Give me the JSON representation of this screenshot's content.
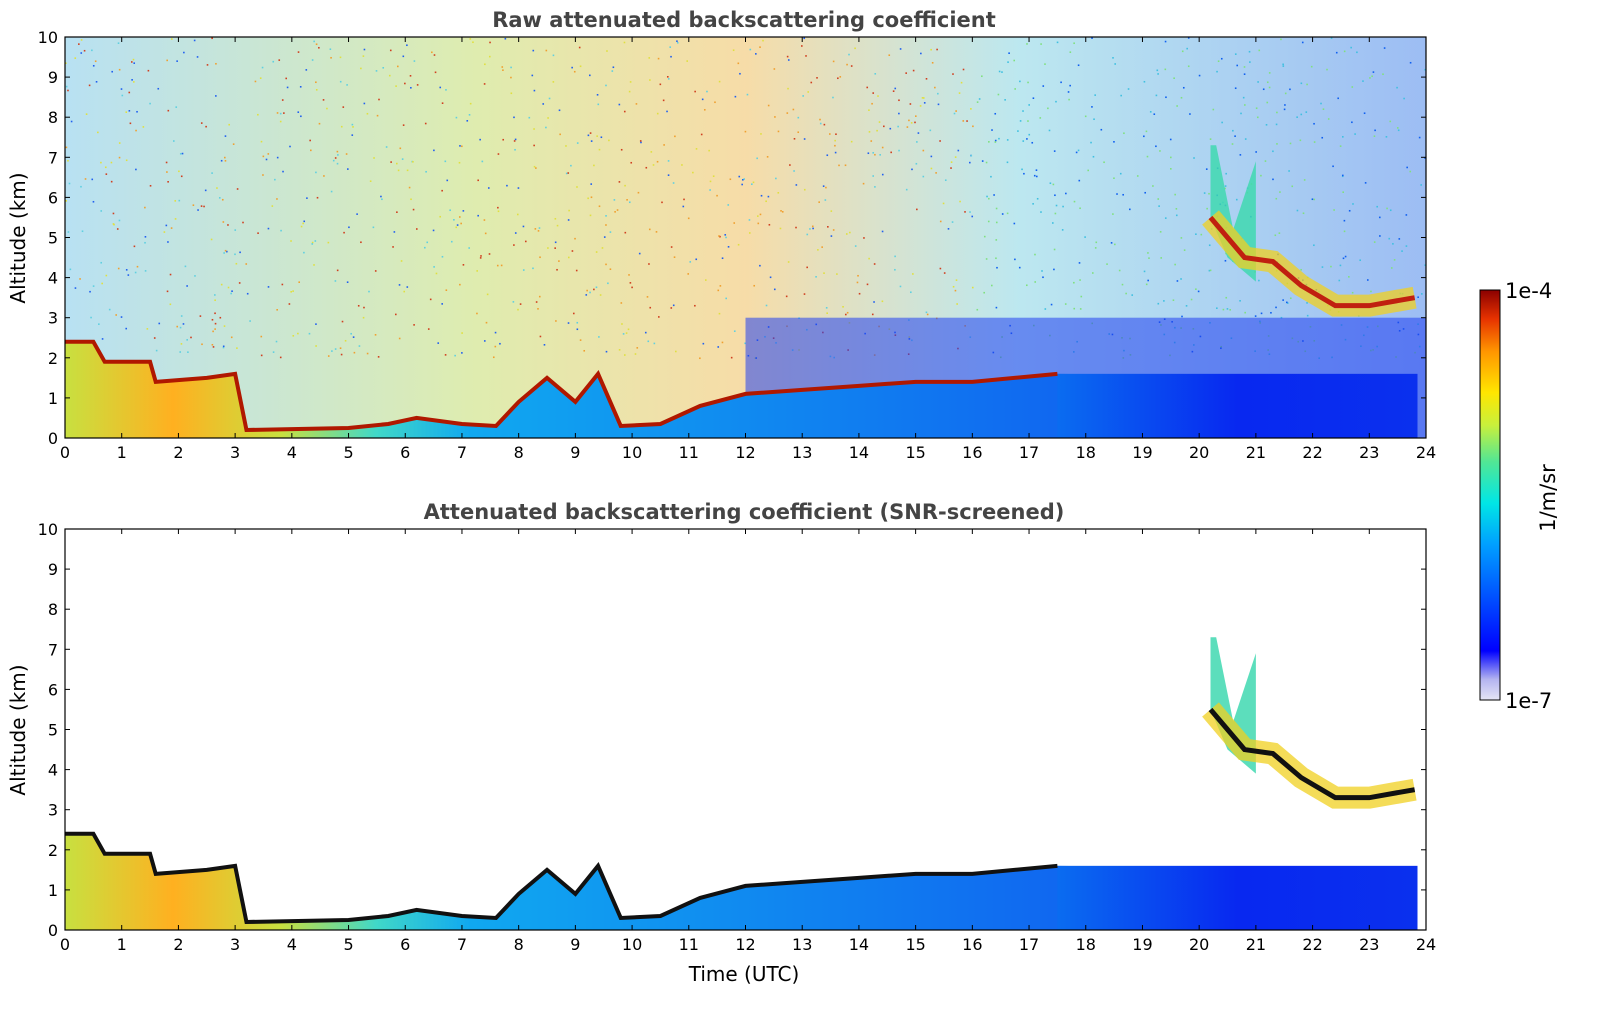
{
  "chart_data": [
    {
      "type": "heatmap",
      "title": "Raw attenuated backscattering coefficient",
      "xlabel": "",
      "ylabel": "Altitude (km)",
      "xlim": [
        0,
        24
      ],
      "ylim": [
        0,
        10
      ],
      "xticks": [
        "0",
        "1",
        "2",
        "3",
        "4",
        "5",
        "6",
        "7",
        "8",
        "9",
        "10",
        "11",
        "12",
        "13",
        "14",
        "15",
        "16",
        "17",
        "18",
        "19",
        "20",
        "21",
        "22",
        "23",
        "24"
      ],
      "yticks": [
        "0",
        "1",
        "2",
        "3",
        "4",
        "5",
        "6",
        "7",
        "8",
        "9",
        "10"
      ],
      "grid": false,
      "colorscale": "jet",
      "description_values": {
        "boundary_layer_top_km": [
          [
            0,
            2.4
          ],
          [
            0.5,
            2.4
          ],
          [
            0.7,
            1.9
          ],
          [
            1.5,
            1.9
          ],
          [
            1.6,
            1.4
          ],
          [
            2.5,
            1.5
          ],
          [
            3.0,
            1.6
          ],
          [
            3.2,
            0.2
          ],
          [
            5.0,
            0.25
          ],
          [
            5.7,
            0.35
          ],
          [
            6.2,
            0.5
          ],
          [
            7.0,
            0.35
          ],
          [
            7.6,
            0.3
          ],
          [
            8.0,
            0.9
          ],
          [
            8.5,
            1.5
          ],
          [
            9.0,
            0.9
          ],
          [
            9.4,
            1.6
          ],
          [
            9.8,
            0.3
          ],
          [
            10.5,
            0.35
          ],
          [
            11.2,
            0.8
          ],
          [
            12.0,
            1.1
          ],
          [
            13.0,
            1.2
          ],
          [
            14.0,
            1.3
          ],
          [
            15.0,
            1.4
          ],
          [
            16.0,
            1.4
          ],
          [
            17.5,
            1.6
          ]
        ],
        "high_cloud_km": [
          [
            20.2,
            5.5
          ],
          [
            20.8,
            4.5
          ],
          [
            21.3,
            4.4
          ],
          [
            21.8,
            3.8
          ],
          [
            22.4,
            3.3
          ],
          [
            23.0,
            3.3
          ],
          [
            23.8,
            3.5
          ]
        ]
      }
    },
    {
      "type": "heatmap",
      "title": "Attenuated backscattering coefficient (SNR-screened)",
      "xlabel": "Time (UTC)",
      "ylabel": "Altitude (km)",
      "xlim": [
        0,
        24
      ],
      "ylim": [
        0,
        10
      ],
      "xticks": [
        "0",
        "1",
        "2",
        "3",
        "4",
        "5",
        "6",
        "7",
        "8",
        "9",
        "10",
        "11",
        "12",
        "13",
        "14",
        "15",
        "16",
        "17",
        "18",
        "19",
        "20",
        "21",
        "22",
        "23",
        "24"
      ],
      "yticks": [
        "0",
        "1",
        "2",
        "3",
        "4",
        "5",
        "6",
        "7",
        "8",
        "9",
        "10"
      ],
      "grid": false,
      "colorscale": "jet"
    }
  ],
  "colorbar": {
    "label": "1/m/sr",
    "max_label": "1e-4",
    "min_label": "1e-7",
    "colors": [
      "#e6e6f5",
      "#b4b4f0",
      "#0000ff",
      "#0050ff",
      "#00a0ff",
      "#00e6e6",
      "#50e696",
      "#c8f03c",
      "#ffe600",
      "#ff9600",
      "#e63200",
      "#8b0000"
    ]
  }
}
